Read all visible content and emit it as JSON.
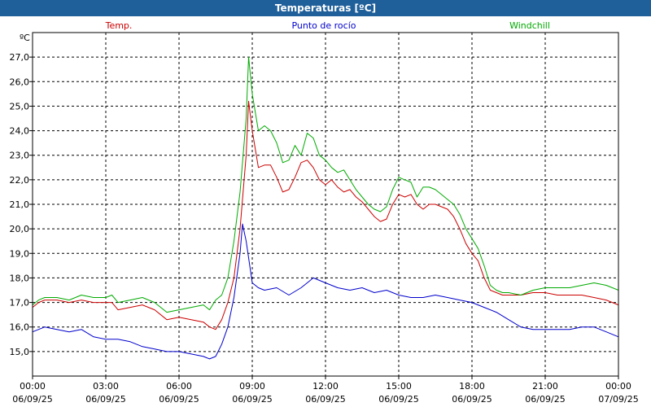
{
  "window": {
    "title": "Temperaturas [ºC]"
  },
  "chart_data": {
    "type": "line",
    "title": "Temperaturas [ºC]",
    "ylabel": "ºC",
    "xlabel": "",
    "ylim": [
      14.0,
      28.0
    ],
    "xlim": [
      0,
      24
    ],
    "grid": true,
    "legend_placement": "top",
    "y_ticks": [
      {
        "value": 15.0,
        "label": "15,0"
      },
      {
        "value": 16.0,
        "label": "16,0"
      },
      {
        "value": 17.0,
        "label": "17,0"
      },
      {
        "value": 18.0,
        "label": "18,0"
      },
      {
        "value": 19.0,
        "label": "19,0"
      },
      {
        "value": 20.0,
        "label": "20,0"
      },
      {
        "value": 21.0,
        "label": "21,0"
      },
      {
        "value": 22.0,
        "label": "22,0"
      },
      {
        "value": 23.0,
        "label": "23,0"
      },
      {
        "value": 24.0,
        "label": "24,0"
      },
      {
        "value": 25.0,
        "label": "25,0"
      },
      {
        "value": 26.0,
        "label": "26,0"
      },
      {
        "value": 27.0,
        "label": "27,0"
      }
    ],
    "x_ticks": [
      {
        "value": 0,
        "time": "00:00",
        "date": "06/09/25"
      },
      {
        "value": 3,
        "time": "03:00",
        "date": "06/09/25"
      },
      {
        "value": 6,
        "time": "06:00",
        "date": "06/09/25"
      },
      {
        "value": 9,
        "time": "09:00",
        "date": "06/09/25"
      },
      {
        "value": 12,
        "time": "12:00",
        "date": "06/09/25"
      },
      {
        "value": 15,
        "time": "15:00",
        "date": "06/09/25"
      },
      {
        "value": 18,
        "time": "18:00",
        "date": "06/09/25"
      },
      {
        "value": 21,
        "time": "21:00",
        "date": "06/09/25"
      },
      {
        "value": 24,
        "time": "00:00",
        "date": "07/09/25"
      }
    ],
    "series": [
      {
        "name": "Temp.",
        "color": "#cc0000",
        "x": [
          0,
          0.25,
          0.5,
          0.75,
          1,
          1.5,
          2,
          2.5,
          3,
          3.25,
          3.5,
          4,
          4.5,
          5,
          5.5,
          6,
          6.5,
          7,
          7.25,
          7.5,
          7.75,
          8,
          8.25,
          8.5,
          8.75,
          8.85,
          9,
          9.25,
          9.5,
          9.75,
          10,
          10.25,
          10.5,
          10.75,
          11,
          11.25,
          11.5,
          11.75,
          12,
          12.25,
          12.5,
          12.75,
          13,
          13.25,
          13.5,
          13.75,
          14,
          14.25,
          14.5,
          14.75,
          15,
          15.25,
          15.5,
          15.75,
          16,
          16.25,
          16.5,
          16.75,
          17,
          17.25,
          17.5,
          17.75,
          18,
          18.25,
          18.5,
          18.75,
          19,
          19.25,
          19.5,
          20,
          20.5,
          21,
          21.5,
          22,
          22.5,
          23,
          23.5,
          24
        ],
        "values": [
          16.8,
          17.0,
          17.1,
          17.1,
          17.1,
          17.0,
          17.1,
          17.0,
          17.0,
          17.0,
          16.7,
          16.8,
          16.9,
          16.7,
          16.3,
          16.4,
          16.3,
          16.2,
          16.0,
          15.9,
          16.3,
          17.0,
          18.0,
          20.0,
          23.0,
          25.2,
          24.0,
          22.5,
          22.6,
          22.6,
          22.1,
          21.5,
          21.6,
          22.1,
          22.7,
          22.8,
          22.5,
          22.0,
          21.8,
          22.0,
          21.7,
          21.5,
          21.6,
          21.3,
          21.1,
          20.8,
          20.5,
          20.3,
          20.4,
          21.0,
          21.4,
          21.3,
          21.4,
          21.0,
          20.8,
          21.0,
          21.0,
          20.9,
          20.8,
          20.5,
          20.0,
          19.4,
          19.0,
          18.7,
          18.0,
          17.5,
          17.4,
          17.3,
          17.3,
          17.3,
          17.4,
          17.4,
          17.3,
          17.3,
          17.3,
          17.2,
          17.1,
          16.9
        ]
      },
      {
        "name": "Punto de rocío",
        "color": "#0000cc",
        "x": [
          0,
          0.5,
          1,
          1.5,
          2,
          2.5,
          3,
          3.5,
          4,
          4.5,
          5,
          5.5,
          6,
          6.5,
          7,
          7.25,
          7.5,
          7.75,
          8,
          8.25,
          8.5,
          8.6,
          8.75,
          9,
          9.25,
          9.5,
          10,
          10.5,
          11,
          11.25,
          11.5,
          12,
          12.5,
          13,
          13.5,
          14,
          14.5,
          15,
          15.5,
          16,
          16.5,
          17,
          17.5,
          18,
          18.5,
          19,
          19.5,
          20,
          20.5,
          21,
          21.5,
          22,
          22.5,
          23,
          23.5,
          24
        ],
        "values": [
          15.8,
          16.0,
          15.9,
          15.8,
          15.9,
          15.6,
          15.5,
          15.5,
          15.4,
          15.2,
          15.1,
          15.0,
          15.0,
          14.9,
          14.8,
          14.7,
          14.8,
          15.3,
          16.0,
          17.2,
          19.0,
          20.2,
          19.5,
          17.8,
          17.6,
          17.5,
          17.6,
          17.3,
          17.6,
          17.8,
          18.0,
          17.8,
          17.6,
          17.5,
          17.6,
          17.4,
          17.5,
          17.3,
          17.2,
          17.2,
          17.3,
          17.2,
          17.1,
          17.0,
          16.8,
          16.6,
          16.3,
          16.0,
          15.9,
          15.9,
          15.9,
          15.9,
          16.0,
          16.0,
          15.8,
          15.6
        ]
      },
      {
        "name": "Windchill",
        "color": "#00aa00",
        "x": [
          0,
          0.25,
          0.5,
          0.75,
          1,
          1.5,
          2,
          2.5,
          3,
          3.25,
          3.5,
          4,
          4.5,
          5,
          5.5,
          6,
          6.5,
          7,
          7.25,
          7.5,
          7.75,
          8,
          8.25,
          8.5,
          8.75,
          8.85,
          9,
          9.25,
          9.5,
          9.75,
          10,
          10.25,
          10.5,
          10.75,
          11,
          11.25,
          11.5,
          11.75,
          12,
          12.25,
          12.5,
          12.75,
          13,
          13.25,
          13.5,
          13.75,
          14,
          14.25,
          14.5,
          14.75,
          15,
          15.25,
          15.5,
          15.75,
          16,
          16.25,
          16.5,
          16.75,
          17,
          17.25,
          17.5,
          17.75,
          18,
          18.25,
          18.5,
          18.75,
          19,
          19.25,
          19.5,
          20,
          20.5,
          21,
          21.5,
          22,
          22.5,
          23,
          23.5,
          24
        ],
        "values": [
          16.9,
          17.1,
          17.2,
          17.2,
          17.2,
          17.1,
          17.3,
          17.2,
          17.2,
          17.3,
          17.0,
          17.1,
          17.2,
          17.0,
          16.6,
          16.7,
          16.8,
          16.9,
          16.7,
          17.1,
          17.3,
          18.0,
          19.5,
          21.5,
          24.5,
          27.0,
          25.5,
          24.0,
          24.2,
          24.0,
          23.5,
          22.7,
          22.8,
          23.4,
          23.0,
          23.9,
          23.7,
          23.0,
          22.8,
          22.5,
          22.3,
          22.4,
          22.0,
          21.6,
          21.3,
          21.0,
          20.8,
          20.7,
          20.9,
          21.6,
          22.1,
          22.0,
          21.9,
          21.3,
          21.7,
          21.7,
          21.6,
          21.4,
          21.2,
          21.0,
          20.6,
          20.0,
          19.6,
          19.2,
          18.5,
          17.7,
          17.5,
          17.4,
          17.4,
          17.3,
          17.5,
          17.6,
          17.6,
          17.6,
          17.7,
          17.8,
          17.7,
          17.5
        ]
      }
    ]
  }
}
